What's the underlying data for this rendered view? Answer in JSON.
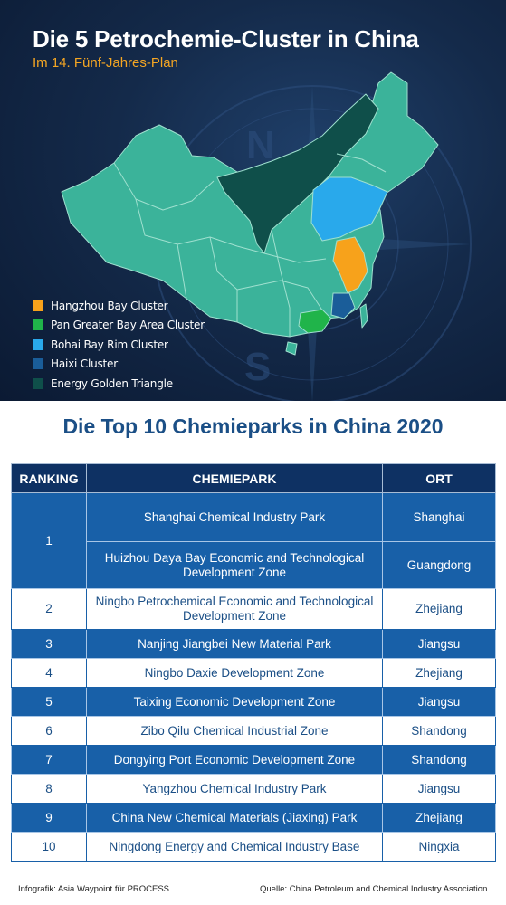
{
  "header": {
    "title": "Die 5 Petrochemie-Cluster in China",
    "subtitle": "Im 14. Fünf-Jahres-Plan"
  },
  "map": {
    "base_color": "#3bb39a",
    "border_color": "#9fe0cf",
    "icon": "china-provinces-map"
  },
  "legend": [
    {
      "label": "Hangzhou Bay Cluster",
      "color": "#f7a21b"
    },
    {
      "label": "Pan Greater Bay Area Cluster",
      "color": "#20b44a"
    },
    {
      "label": "Bohai Bay Rim Cluster",
      "color": "#29a9eb"
    },
    {
      "label": "Haixi Cluster",
      "color": "#1a5d99"
    },
    {
      "label": "Energy Golden Triangle",
      "color": "#0f4f4a"
    }
  ],
  "table": {
    "title": "Die Top 10 Chemieparks in China 2020",
    "headers": {
      "ranking": "RANKING",
      "park": "CHEMIEPARK",
      "location": "ORT"
    },
    "rows": [
      {
        "rank": "1",
        "park": "Shanghai Chemical Industry Park",
        "location": "Shanghai"
      },
      {
        "rank": "",
        "park": "Huizhou Daya Bay Economic and Technological Development Zone",
        "location": "Guangdong"
      },
      {
        "rank": "2",
        "park": "Ningbo Petrochemical Economic and Technological Development Zone",
        "location": "Zhejiang"
      },
      {
        "rank": "3",
        "park": "Nanjing Jiangbei New Material Park",
        "location": "Jiangsu"
      },
      {
        "rank": "4",
        "park": "Ningbo Daxie Development Zone",
        "location": "Zhejiang"
      },
      {
        "rank": "5",
        "park": "Taixing Economic Development Zone",
        "location": "Jiangsu"
      },
      {
        "rank": "6",
        "park": "Zibo Qilu Chemical Industrial Zone",
        "location": "Shandong"
      },
      {
        "rank": "7",
        "park": "Dongying Port Economic Development Zone",
        "location": "Shandong"
      },
      {
        "rank": "8",
        "park": "Yangzhou Chemical Industry Park",
        "location": "Jiangsu"
      },
      {
        "rank": "9",
        "park": "China New Chemical Materials (Jiaxing) Park",
        "location": "Zhejiang"
      },
      {
        "rank": "10",
        "park": "Ningdong Energy and Chemical Industry Base",
        "location": "Ningxia"
      }
    ]
  },
  "footer": {
    "credit": "Infografik: Asia Waypoint für PROCESS",
    "source": "Quelle: China Petroleum and Chemical Industry Association"
  }
}
